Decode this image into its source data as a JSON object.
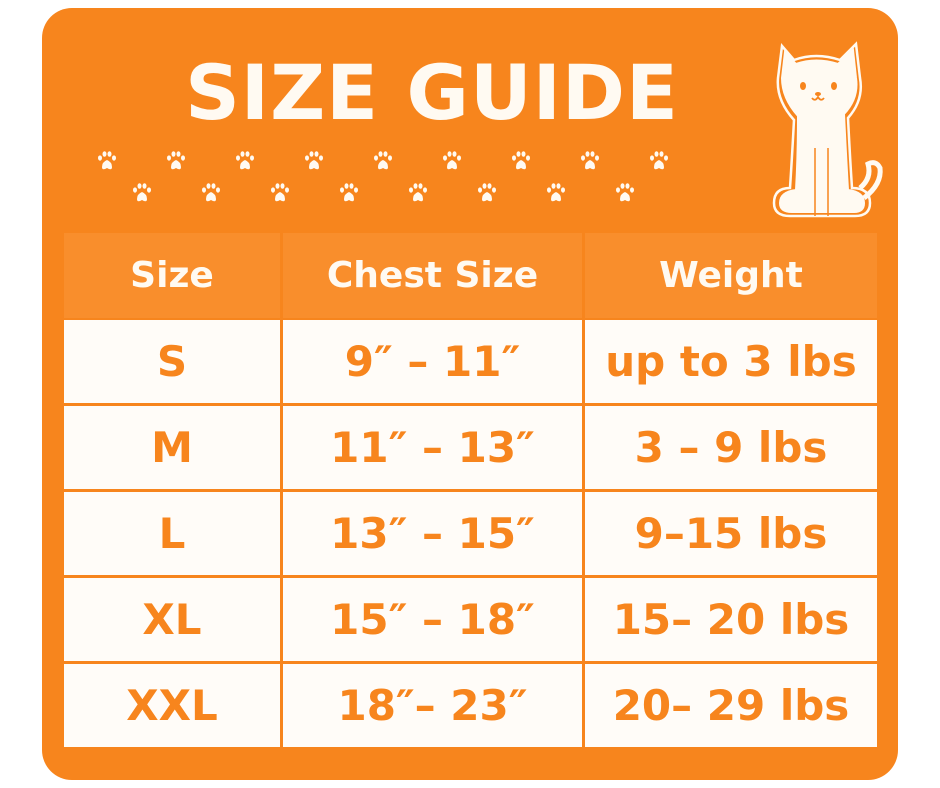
{
  "title": "SIZE GUIDE",
  "colors": {
    "accent": "#f7851d",
    "cell_bg": "#fffcf8",
    "header_bg": "#f98e2c",
    "text_light": "#fffaf2"
  },
  "decorations": {
    "paw_icon": "paw-print-icon",
    "mascot_icon": "cat-icon"
  },
  "table": {
    "headers": [
      "Size",
      "Chest Size",
      "Weight"
    ],
    "rows": [
      [
        "S",
        "9″ – 11″",
        "up to 3 lbs"
      ],
      [
        "M",
        "11″ – 13″",
        "3 – 9 lbs"
      ],
      [
        "L",
        "13″ – 15″",
        "9–15 lbs"
      ],
      [
        "XL",
        "15″ – 18″",
        "15– 20 lbs"
      ],
      [
        "XXL",
        "18″– 23″",
        "20– 29 lbs"
      ]
    ]
  }
}
